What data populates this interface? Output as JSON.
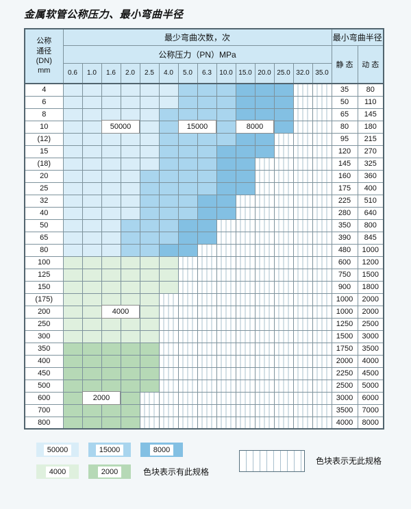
{
  "title": "金属软管公称压力、最小弯曲半径",
  "colors": {
    "c50000": "#d9edf8",
    "c15000": "#a9d5ee",
    "c8000": "#83c0e3",
    "c4000": "#dff0de",
    "c2000": "#b6d9b6",
    "hatch_line": "#a9c0ce",
    "header_bg": "#cfe8f5",
    "grid": "#7d929c",
    "page_bg": "#f3f7f9"
  },
  "table": {
    "header": {
      "dn_label_lines": [
        "公称",
        "通径",
        "(DN)",
        "mm"
      ],
      "bend_times_label": "最少弯曲次数，次",
      "pressure_label": "公称压力（PN）MPa",
      "radius_label": "最小弯曲半径",
      "static_label": "静 态",
      "dynamic_label": "动 态",
      "pressure_columns": [
        "0.6",
        "1.0",
        "1.6",
        "2.0",
        "2.5",
        "4.0",
        "5.0",
        "6.3",
        "10.0",
        "15.0",
        "20.0",
        "25.0",
        "32.0",
        "35.0"
      ]
    },
    "rows": [
      {
        "dn": "4",
        "cycles": [
          "50000",
          "50000",
          "50000",
          "50000",
          "50000",
          "50000",
          "15000",
          "15000",
          "15000",
          "8000",
          "8000",
          "8000",
          null,
          null
        ],
        "static": "35",
        "dynamic": "80"
      },
      {
        "dn": "6",
        "cycles": [
          "50000",
          "50000",
          "50000",
          "50000",
          "50000",
          "50000",
          "15000",
          "15000",
          "15000",
          "8000",
          "8000",
          "8000",
          null,
          null
        ],
        "static": "50",
        "dynamic": "110"
      },
      {
        "dn": "8",
        "cycles": [
          "50000",
          "50000",
          "50000",
          "50000",
          "50000",
          "15000",
          "15000",
          "15000",
          "15000",
          "8000",
          "8000",
          "8000",
          null,
          null
        ],
        "static": "65",
        "dynamic": "145"
      },
      {
        "dn": "10",
        "cycles": [
          "50000",
          "50000",
          "50000",
          "50000",
          "50000",
          "15000",
          "15000",
          "15000",
          "15000",
          "8000",
          "8000",
          "8000",
          null,
          null
        ],
        "static": "80",
        "dynamic": "180"
      },
      {
        "dn": "(12)",
        "cycles": [
          "50000",
          "50000",
          "50000",
          "50000",
          "50000",
          "15000",
          "15000",
          "15000",
          "15000",
          "8000",
          "8000",
          null,
          null,
          null
        ],
        "static": "95",
        "dynamic": "215"
      },
      {
        "dn": "15",
        "cycles": [
          "50000",
          "50000",
          "50000",
          "50000",
          "50000",
          "15000",
          "15000",
          "15000",
          "8000",
          "8000",
          "8000",
          null,
          null,
          null
        ],
        "static": "120",
        "dynamic": "270"
      },
      {
        "dn": "(18)",
        "cycles": [
          "50000",
          "50000",
          "50000",
          "50000",
          "50000",
          "15000",
          "15000",
          "15000",
          "8000",
          "8000",
          null,
          null,
          null,
          null
        ],
        "static": "145",
        "dynamic": "325"
      },
      {
        "dn": "20",
        "cycles": [
          "50000",
          "50000",
          "50000",
          "50000",
          "15000",
          "15000",
          "15000",
          "15000",
          "8000",
          "8000",
          null,
          null,
          null,
          null
        ],
        "static": "160",
        "dynamic": "360"
      },
      {
        "dn": "25",
        "cycles": [
          "50000",
          "50000",
          "50000",
          "50000",
          "15000",
          "15000",
          "15000",
          "15000",
          "8000",
          "8000",
          null,
          null,
          null,
          null
        ],
        "static": "175",
        "dynamic": "400"
      },
      {
        "dn": "32",
        "cycles": [
          "50000",
          "50000",
          "50000",
          "50000",
          "15000",
          "15000",
          "15000",
          "8000",
          "8000",
          null,
          null,
          null,
          null,
          null
        ],
        "static": "225",
        "dynamic": "510"
      },
      {
        "dn": "40",
        "cycles": [
          "50000",
          "50000",
          "50000",
          "50000",
          "15000",
          "15000",
          "15000",
          "8000",
          "8000",
          null,
          null,
          null,
          null,
          null
        ],
        "static": "280",
        "dynamic": "640"
      },
      {
        "dn": "50",
        "cycles": [
          "50000",
          "50000",
          "50000",
          "15000",
          "15000",
          "15000",
          "8000",
          "8000",
          null,
          null,
          null,
          null,
          null,
          null
        ],
        "static": "350",
        "dynamic": "800"
      },
      {
        "dn": "65",
        "cycles": [
          "50000",
          "50000",
          "50000",
          "15000",
          "15000",
          "15000",
          "8000",
          "8000",
          null,
          null,
          null,
          null,
          null,
          null
        ],
        "static": "390",
        "dynamic": "845"
      },
      {
        "dn": "80",
        "cycles": [
          "50000",
          "50000",
          "50000",
          "15000",
          "15000",
          "8000",
          "8000",
          null,
          null,
          null,
          null,
          null,
          null,
          null
        ],
        "static": "480",
        "dynamic": "1000"
      },
      {
        "dn": "100",
        "cycles": [
          "4000",
          "4000",
          "4000",
          "4000",
          "4000",
          "4000",
          null,
          null,
          null,
          null,
          null,
          null,
          null,
          null
        ],
        "static": "600",
        "dynamic": "1200"
      },
      {
        "dn": "125",
        "cycles": [
          "4000",
          "4000",
          "4000",
          "4000",
          "4000",
          "4000",
          null,
          null,
          null,
          null,
          null,
          null,
          null,
          null
        ],
        "static": "750",
        "dynamic": "1500"
      },
      {
        "dn": "150",
        "cycles": [
          "4000",
          "4000",
          "4000",
          "4000",
          "4000",
          "4000",
          null,
          null,
          null,
          null,
          null,
          null,
          null,
          null
        ],
        "static": "900",
        "dynamic": "1800"
      },
      {
        "dn": "(175)",
        "cycles": [
          "4000",
          "4000",
          "4000",
          "4000",
          "4000",
          null,
          null,
          null,
          null,
          null,
          null,
          null,
          null,
          null
        ],
        "static": "1000",
        "dynamic": "2000"
      },
      {
        "dn": "200",
        "cycles": [
          "4000",
          "4000",
          "4000",
          "4000",
          "4000",
          null,
          null,
          null,
          null,
          null,
          null,
          null,
          null,
          null
        ],
        "static": "1000",
        "dynamic": "2000"
      },
      {
        "dn": "250",
        "cycles": [
          "4000",
          "4000",
          "4000",
          "4000",
          "4000",
          null,
          null,
          null,
          null,
          null,
          null,
          null,
          null,
          null
        ],
        "static": "1250",
        "dynamic": "2500"
      },
      {
        "dn": "300",
        "cycles": [
          "4000",
          "4000",
          "4000",
          "4000",
          "4000",
          null,
          null,
          null,
          null,
          null,
          null,
          null,
          null,
          null
        ],
        "static": "1500",
        "dynamic": "3000"
      },
      {
        "dn": "350",
        "cycles": [
          "2000",
          "2000",
          "2000",
          "2000",
          "2000",
          null,
          null,
          null,
          null,
          null,
          null,
          null,
          null,
          null
        ],
        "static": "1750",
        "dynamic": "3500"
      },
      {
        "dn": "400",
        "cycles": [
          "2000",
          "2000",
          "2000",
          "2000",
          "2000",
          null,
          null,
          null,
          null,
          null,
          null,
          null,
          null,
          null
        ],
        "static": "2000",
        "dynamic": "4000"
      },
      {
        "dn": "450",
        "cycles": [
          "2000",
          "2000",
          "2000",
          "2000",
          "2000",
          null,
          null,
          null,
          null,
          null,
          null,
          null,
          null,
          null
        ],
        "static": "2250",
        "dynamic": "4500"
      },
      {
        "dn": "500",
        "cycles": [
          "2000",
          "2000",
          "2000",
          "2000",
          "2000",
          null,
          null,
          null,
          null,
          null,
          null,
          null,
          null,
          null
        ],
        "static": "2500",
        "dynamic": "5000"
      },
      {
        "dn": "600",
        "cycles": [
          "2000",
          "2000",
          "2000",
          "2000",
          null,
          null,
          null,
          null,
          null,
          null,
          null,
          null,
          null,
          null
        ],
        "static": "3000",
        "dynamic": "6000"
      },
      {
        "dn": "700",
        "cycles": [
          "2000",
          "2000",
          "2000",
          "2000",
          null,
          null,
          null,
          null,
          null,
          null,
          null,
          null,
          null,
          null
        ],
        "static": "3500",
        "dynamic": "7000"
      },
      {
        "dn": "800",
        "cycles": [
          "2000",
          "2000",
          "2000",
          "2000",
          null,
          null,
          null,
          null,
          null,
          null,
          null,
          null,
          null,
          null
        ],
        "static": "4000",
        "dynamic": "8000"
      }
    ]
  },
  "overlays": [
    {
      "label": "50000",
      "row": 3,
      "col": 2,
      "span": 2
    },
    {
      "label": "15000",
      "row": 3,
      "col": 6,
      "span": 2
    },
    {
      "label": "8000",
      "row": 3,
      "col": 9,
      "span": 2
    },
    {
      "label": "4000",
      "row": 18,
      "col": 2,
      "span": 2
    },
    {
      "label": "2000",
      "row": 25,
      "col": 1,
      "span": 2
    }
  ],
  "legend": {
    "items": [
      {
        "label": "50000"
      },
      {
        "label": "15000"
      },
      {
        "label": "8000"
      },
      {
        "label": "4000"
      },
      {
        "label": "2000"
      }
    ],
    "has_spec_note": "色块表示有此规格",
    "no_spec_note": "色块表示无此规格"
  }
}
